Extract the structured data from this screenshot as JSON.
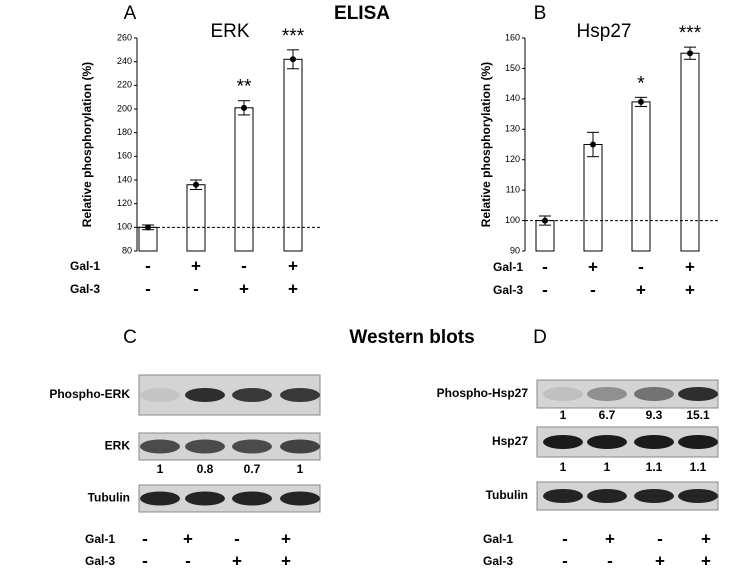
{
  "chart_data": [
    {
      "type": "bar",
      "panel": "A",
      "heading": "ELISA",
      "title": "ERK",
      "ylabel": "Relative phosphorylation (%)",
      "values": [
        100,
        136,
        201,
        242
      ],
      "errors": [
        2,
        4,
        6,
        8
      ],
      "annotations": [
        null,
        null,
        "**",
        "***"
      ],
      "reference_line": 100,
      "color": "#ffffff",
      "ylim": [
        80,
        260
      ],
      "yticks": [
        80,
        100,
        120,
        140,
        160,
        180,
        200,
        220,
        240,
        260
      ],
      "conditions": [
        {
          "name": "Gal-1",
          "states": [
            "-",
            "+",
            "-",
            "+"
          ]
        },
        {
          "name": "Gal-3",
          "states": [
            "-",
            "-",
            "+",
            "+"
          ]
        }
      ]
    },
    {
      "type": "bar",
      "panel": "B",
      "title": "Hsp27",
      "ylabel": "Relative phosphorylation (%)",
      "values": [
        100,
        125,
        139,
        155
      ],
      "errors": [
        1.5,
        4,
        1.5,
        2
      ],
      "annotations": [
        null,
        null,
        "*",
        "***"
      ],
      "reference_line": 100,
      "color": "#ffffff",
      "ylim": [
        90,
        160
      ],
      "yticks": [
        90,
        100,
        110,
        120,
        130,
        140,
        150,
        160
      ],
      "conditions": [
        {
          "name": "Gal-1",
          "states": [
            "-",
            "+",
            "-",
            "+"
          ]
        },
        {
          "name": "Gal-3",
          "states": [
            "-",
            "-",
            "+",
            "+"
          ]
        }
      ]
    }
  ],
  "western_blots": {
    "heading": "Western blots",
    "panels": [
      {
        "panel": "C",
        "rows": [
          {
            "label": "Phospho-ERK"
          },
          {
            "label": "ERK",
            "quantification": [
              1,
              0.8,
              0.7,
              1
            ]
          },
          {
            "label": "Tubulin"
          }
        ],
        "conditions": [
          {
            "name": "Gal-1",
            "states": [
              "-",
              "+",
              "-",
              "+"
            ]
          },
          {
            "name": "Gal-3",
            "states": [
              "-",
              "-",
              "+",
              "+"
            ]
          }
        ]
      },
      {
        "panel": "D",
        "rows": [
          {
            "label": "Phospho-Hsp27",
            "quantification": [
              1,
              6.7,
              9.3,
              15.1
            ]
          },
          {
            "label": "Hsp27",
            "quantification": [
              1,
              1,
              1.1,
              1.1
            ]
          },
          {
            "label": "Tubulin"
          }
        ],
        "conditions": [
          {
            "name": "Gal-1",
            "states": [
              "-",
              "+",
              "-",
              "+"
            ]
          },
          {
            "name": "Gal-3",
            "states": [
              "-",
              "-",
              "+",
              "+"
            ]
          }
        ]
      }
    ]
  }
}
